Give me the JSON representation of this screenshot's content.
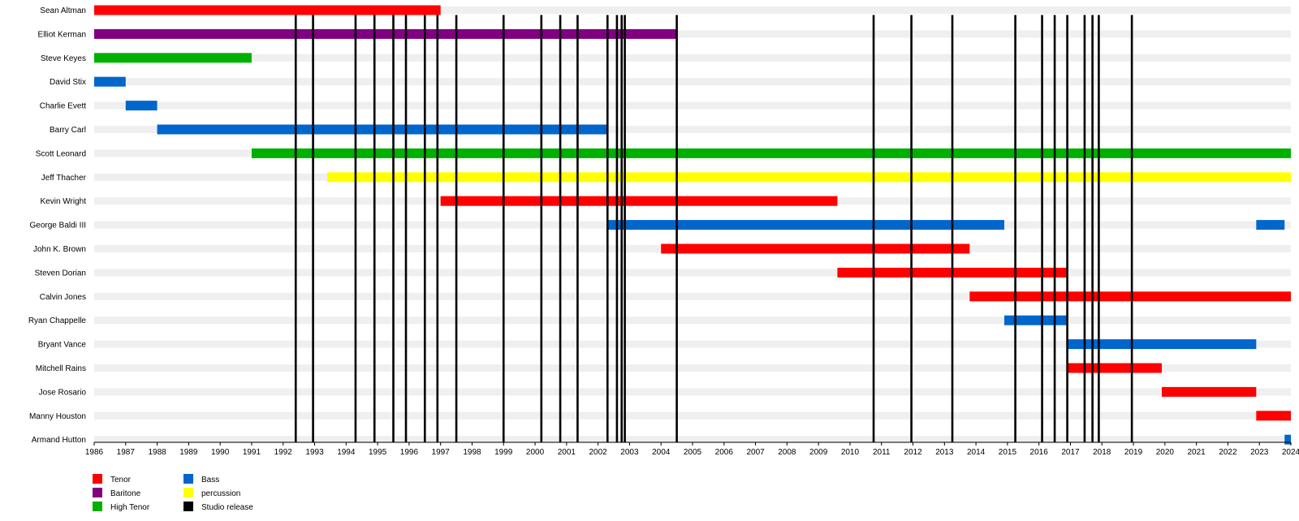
{
  "chart_data": {
    "type": "timeline",
    "title": "",
    "xlabel": "",
    "ylabel": "",
    "xlim": [
      1986,
      2024
    ],
    "x_ticks": [
      1986,
      1987,
      1988,
      1989,
      1990,
      1991,
      1992,
      1993,
      1994,
      1995,
      1996,
      1997,
      1998,
      1999,
      2000,
      2001,
      2002,
      2003,
      2004,
      2005,
      2006,
      2007,
      2008,
      2009,
      2010,
      2011,
      2012,
      2013,
      2014,
      2015,
      2016,
      2017,
      2018,
      2019,
      2020,
      2021,
      2022,
      2023,
      2024
    ],
    "legend_position": "bottom-left",
    "roles": [
      {
        "name": "Tenor",
        "color": "#ff0000"
      },
      {
        "name": "Baritone",
        "color": "#800080"
      },
      {
        "name": "High Tenor",
        "color": "#00b000"
      },
      {
        "name": "Bass",
        "color": "#0066cc"
      },
      {
        "name": "percussion",
        "color": "#ffff00"
      },
      {
        "name": "Studio release",
        "color": "#000000"
      }
    ],
    "members": [
      {
        "name": "Sean Altman",
        "tenures": [
          {
            "start": 1986.0,
            "end": 1997.0,
            "role": "Tenor"
          }
        ]
      },
      {
        "name": "Elliot Kerman",
        "tenures": [
          {
            "start": 1986.0,
            "end": 2004.5,
            "role": "Baritone"
          }
        ]
      },
      {
        "name": "Steve Keyes",
        "tenures": [
          {
            "start": 1986.0,
            "end": 1991.0,
            "role": "High Tenor"
          }
        ]
      },
      {
        "name": "David Stix",
        "tenures": [
          {
            "start": 1986.0,
            "end": 1987.0,
            "role": "Bass"
          }
        ]
      },
      {
        "name": "Charlie Evett",
        "tenures": [
          {
            "start": 1987.0,
            "end": 1988.0,
            "role": "Bass"
          }
        ]
      },
      {
        "name": "Barry Carl",
        "tenures": [
          {
            "start": 1988.0,
            "end": 2002.3,
            "role": "Bass"
          }
        ]
      },
      {
        "name": "Scott Leonard",
        "tenures": [
          {
            "start": 1991.0,
            "end": 2024.0,
            "role": "High Tenor"
          }
        ]
      },
      {
        "name": "Jeff Thacher",
        "tenures": [
          {
            "start": 1993.4,
            "end": 2024.0,
            "role": "percussion"
          }
        ]
      },
      {
        "name": "Kevin Wright",
        "tenures": [
          {
            "start": 1997.0,
            "end": 2009.6,
            "role": "Tenor"
          }
        ]
      },
      {
        "name": "George Baldi III",
        "tenures": [
          {
            "start": 2002.3,
            "end": 2014.9,
            "role": "Bass"
          },
          {
            "start": 2022.9,
            "end": 2023.8,
            "role": "Bass"
          }
        ]
      },
      {
        "name": "John K. Brown",
        "tenures": [
          {
            "start": 2004.0,
            "end": 2013.8,
            "role": "Tenor"
          }
        ]
      },
      {
        "name": "Steven Dorian",
        "tenures": [
          {
            "start": 2009.6,
            "end": 2016.9,
            "role": "Tenor"
          }
        ]
      },
      {
        "name": "Calvin Jones",
        "tenures": [
          {
            "start": 2013.8,
            "end": 2024.0,
            "role": "Tenor"
          }
        ]
      },
      {
        "name": "Ryan Chappelle",
        "tenures": [
          {
            "start": 2014.9,
            "end": 2016.9,
            "role": "Bass"
          }
        ]
      },
      {
        "name": "Bryant Vance",
        "tenures": [
          {
            "start": 2016.9,
            "end": 2022.9,
            "role": "Bass"
          }
        ]
      },
      {
        "name": "Mitchell Rains",
        "tenures": [
          {
            "start": 2016.9,
            "end": 2019.9,
            "role": "Tenor"
          }
        ]
      },
      {
        "name": "Jose Rosario",
        "tenures": [
          {
            "start": 2019.9,
            "end": 2022.9,
            "role": "Tenor"
          }
        ]
      },
      {
        "name": "Manny Houston",
        "tenures": [
          {
            "start": 2022.9,
            "end": 2024.0,
            "role": "Tenor"
          }
        ]
      },
      {
        "name": "Armand Hutton",
        "tenures": [
          {
            "start": 2023.8,
            "end": 2024.0,
            "role": "Bass"
          }
        ]
      }
    ],
    "studio_releases": [
      1992.4,
      1992.95,
      1994.3,
      1994.9,
      1995.5,
      1995.9,
      1996.5,
      1996.9,
      1997.5,
      1999.0,
      2000.2,
      2000.8,
      2001.35,
      2002.3,
      2002.6,
      2002.75,
      2002.85,
      2004.5,
      2010.75,
      2011.95,
      2013.25,
      2015.25,
      2016.1,
      2016.5,
      2016.9,
      2017.45,
      2017.7,
      2017.9,
      2018.95
    ]
  }
}
